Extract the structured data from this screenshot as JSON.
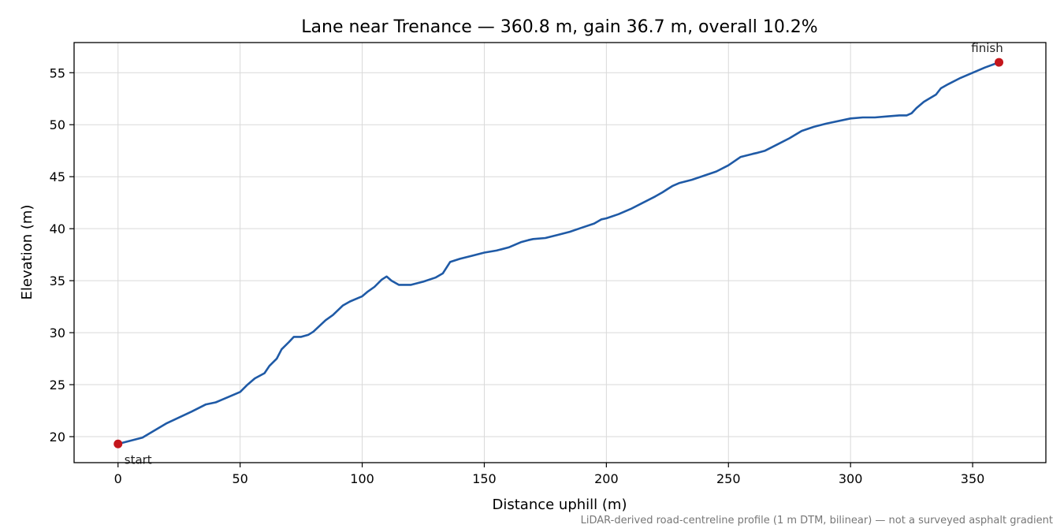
{
  "chart_data": {
    "type": "line",
    "title": "Lane near Trenance — 360.8 m, gain 36.7 m, overall 10.2%",
    "xlabel": "Distance uphill (m)",
    "ylabel": "Elevation (m)",
    "footnote": "LiDAR-derived road-centreline profile (1 m DTM, bilinear) — not a surveyed asphalt gradient",
    "xlim": [
      -18,
      380
    ],
    "ylim": [
      17.5,
      57.9
    ],
    "xticks": [
      0,
      50,
      100,
      150,
      200,
      250,
      300,
      350
    ],
    "yticks": [
      20,
      25,
      30,
      35,
      40,
      45,
      50,
      55
    ],
    "grid": true,
    "colors": {
      "line": "#1f5aa6",
      "marker": "#c4161c"
    },
    "series": [
      {
        "x": [
          0,
          10,
          20,
          30,
          36,
          40,
          45,
          50,
          53,
          56,
          60,
          62,
          65,
          67,
          70,
          72,
          75,
          78,
          80,
          85,
          88,
          92,
          95,
          100,
          102,
          105,
          108,
          110,
          112,
          115,
          120,
          125,
          130,
          133,
          136,
          140,
          145,
          150,
          155,
          160,
          163,
          165,
          168,
          170,
          175,
          180,
          185,
          190,
          195,
          198,
          200,
          205,
          210,
          215,
          220,
          223,
          225,
          227,
          230,
          235,
          240,
          245,
          250,
          255,
          260,
          262,
          265,
          270,
          275,
          280,
          285,
          290,
          300,
          305,
          310,
          315,
          320,
          323,
          325,
          327,
          330,
          335,
          337,
          340,
          345,
          350,
          355,
          360.8
        ],
        "y": [
          19.3,
          19.9,
          21.3,
          22.4,
          23.1,
          23.3,
          23.8,
          24.3,
          25.0,
          25.6,
          26.1,
          26.8,
          27.5,
          28.4,
          29.1,
          29.6,
          29.6,
          29.8,
          30.1,
          31.2,
          31.7,
          32.6,
          33.0,
          33.5,
          33.9,
          34.4,
          35.1,
          35.4,
          35.0,
          34.6,
          34.6,
          34.9,
          35.3,
          35.7,
          36.8,
          37.1,
          37.4,
          37.7,
          37.9,
          38.2,
          38.5,
          38.7,
          38.9,
          39.0,
          39.1,
          39.4,
          39.7,
          40.1,
          40.5,
          40.9,
          41.0,
          41.4,
          41.9,
          42.5,
          43.1,
          43.5,
          43.8,
          44.1,
          44.4,
          44.7,
          45.1,
          45.5,
          46.1,
          46.9,
          47.2,
          47.3,
          47.5,
          48.1,
          48.7,
          49.4,
          49.8,
          50.1,
          50.6,
          50.7,
          50.7,
          50.8,
          50.9,
          50.9,
          51.1,
          51.6,
          52.2,
          52.9,
          53.5,
          53.9,
          54.5,
          55.0,
          55.5,
          56.0
        ]
      }
    ],
    "markers": [
      {
        "label": "start",
        "x": 0,
        "y": 19.3
      },
      {
        "label": "finish",
        "x": 360.8,
        "y": 56.0
      }
    ]
  }
}
